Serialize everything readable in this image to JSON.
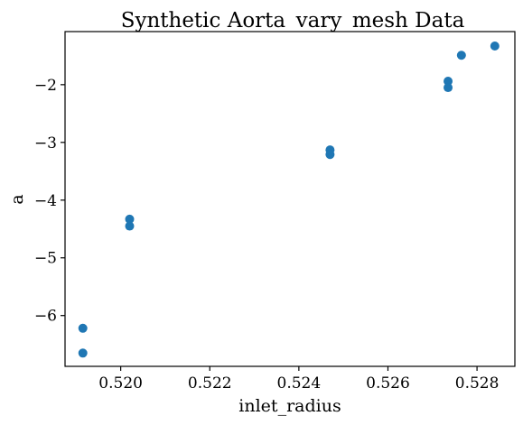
{
  "chart_data": {
    "type": "scatter",
    "title": "Synthetic Aorta_vary_mesh Data",
    "xlabel": "inlet_radius",
    "ylabel": "a",
    "xlim": [
      0.51875,
      0.52885
    ],
    "ylim": [
      -6.88,
      -1.08
    ],
    "xticks": [
      0.52,
      0.522,
      0.524,
      0.526,
      0.528
    ],
    "xtick_labels": [
      "0.520",
      "0.522",
      "0.524",
      "0.526",
      "0.528"
    ],
    "yticks": [
      -2,
      -3,
      -4,
      -5,
      -6
    ],
    "ytick_labels": [
      "−2",
      "−3",
      "−4",
      "−5",
      "−6"
    ],
    "grid": false,
    "marker_color": "#1f77b4",
    "series": [
      {
        "x": [
          0.51915,
          0.51915,
          0.5202,
          0.5202,
          0.5247,
          0.5247,
          0.52735,
          0.52735,
          0.52765,
          0.5284
        ],
        "y": [
          -6.22,
          -6.65,
          -4.33,
          -4.45,
          -3.13,
          -3.21,
          -1.94,
          -2.05,
          -1.49,
          -1.33
        ]
      }
    ]
  }
}
